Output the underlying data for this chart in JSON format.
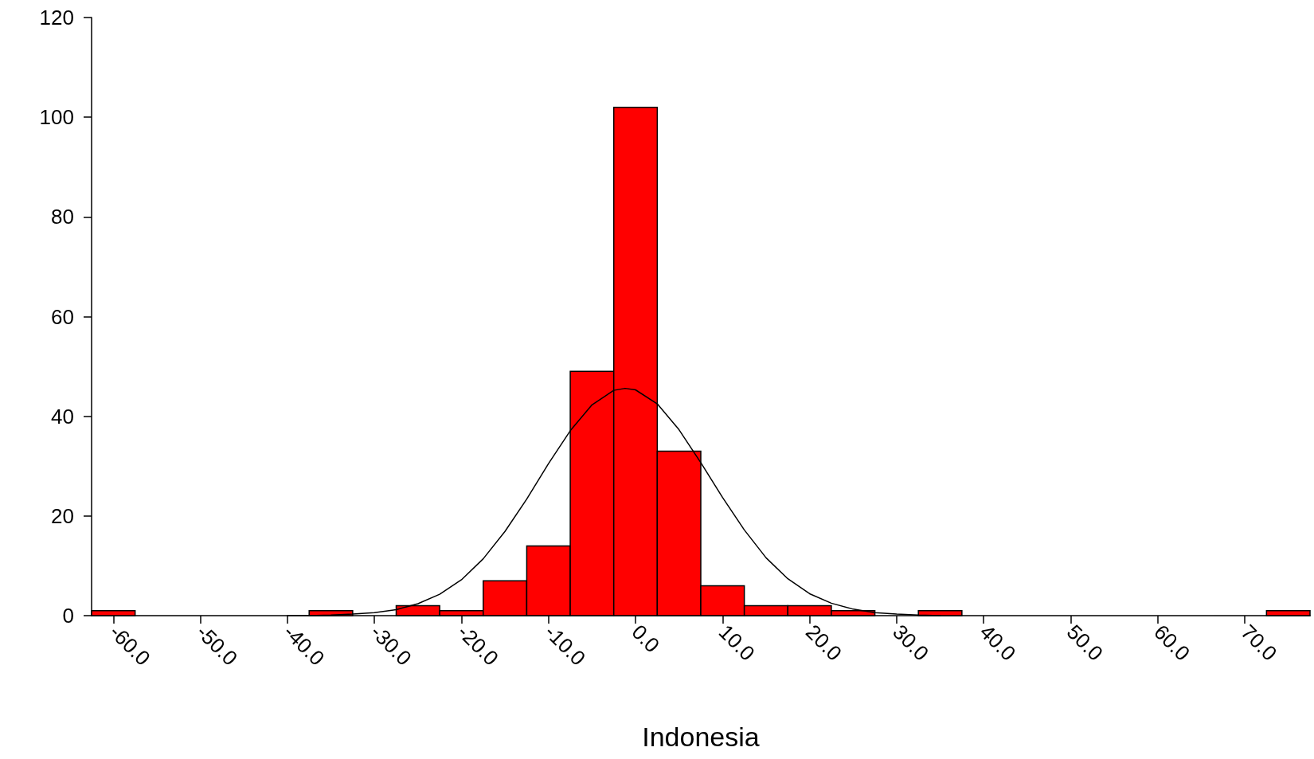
{
  "chart_data": {
    "type": "histogram",
    "xlabel": "Indonesia",
    "color": "#ff0000",
    "bins": [
      -62.5,
      -57.5,
      -52.5,
      -47.5,
      -42.5,
      -37.5,
      -32.5,
      -27.5,
      -22.5,
      -17.5,
      -12.5,
      -7.5,
      -2.5,
      2.5,
      7.5,
      12.5,
      17.5,
      22.5,
      27.5,
      32.5,
      37.5,
      42.5,
      47.5,
      52.5,
      57.5,
      62.5,
      67.5,
      72.5,
      77.5
    ],
    "values": [
      1,
      0,
      0,
      0,
      0,
      1,
      0,
      2,
      1,
      7,
      14,
      49,
      102,
      33,
      6,
      2,
      2,
      1,
      0,
      1,
      0,
      0,
      0,
      0,
      0,
      0,
      0,
      1
    ],
    "series": [
      {
        "type": "line",
        "color": "#000000",
        "x": [
          -40,
          -37.5,
          -35,
          -32.5,
          -30,
          -27.5,
          -25,
          -22.5,
          -20,
          -17.5,
          -15,
          -12.5,
          -10,
          -7.5,
          -5,
          -2.5,
          -1.2,
          0,
          2.5,
          5,
          7.5,
          10,
          12.5,
          15,
          17.5,
          20,
          22.5,
          25,
          27.5,
          30,
          32.5,
          35
        ],
        "values": [
          0,
          0,
          0.1,
          0.3,
          0.6,
          1.2,
          2.4,
          4.3,
          7.2,
          11.4,
          16.9,
          23.4,
          30.5,
          37.1,
          42.3,
          45.2,
          45.6,
          45.3,
          42.5,
          37.3,
          30.7,
          23.7,
          17.2,
          11.6,
          7.4,
          4.4,
          2.5,
          1.3,
          0.6,
          0.3,
          0.1,
          0
        ]
      }
    ],
    "marker": "none",
    "line_style": "solid",
    "xlim": [
      -62.5,
      77.5
    ],
    "xticks": [
      {
        "value": -60,
        "label": "-60.0"
      },
      {
        "value": -50,
        "label": "-50.0"
      },
      {
        "value": -40,
        "label": "-40.0"
      },
      {
        "value": -30,
        "label": "-30.0"
      },
      {
        "value": -20,
        "label": "-20.0"
      },
      {
        "value": -10,
        "label": "-10.0"
      },
      {
        "value": 0,
        "label": "0.0"
      },
      {
        "value": 10,
        "label": "10.0"
      },
      {
        "value": 20,
        "label": "20.0"
      },
      {
        "value": 30,
        "label": "30.0"
      },
      {
        "value": 40,
        "label": "40.0"
      },
      {
        "value": 50,
        "label": "50.0"
      },
      {
        "value": 60,
        "label": "60.0"
      },
      {
        "value": 70,
        "label": "70.0"
      }
    ],
    "ylim": [
      0,
      120
    ],
    "yticks": [
      0,
      20,
      40,
      60,
      80,
      100,
      120
    ]
  }
}
